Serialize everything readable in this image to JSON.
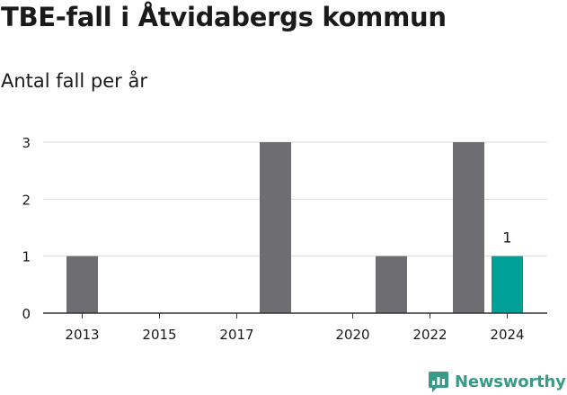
{
  "header": {
    "title": "TBE-fall i Åtvidabergs kommun",
    "subtitle": "Antal fall per år"
  },
  "brand": {
    "name": "Newsworthy",
    "color": "#3a9a85"
  },
  "colors": {
    "bar": "#6e6d72",
    "highlight": "#00a096",
    "grid": "#d9d9d9",
    "axis": "#333333"
  },
  "chart_data": {
    "type": "bar",
    "title": "TBE-fall i Åtvidabergs kommun",
    "subtitle": "Antal fall per år",
    "categories": [
      "2013",
      "2014",
      "2015",
      "2016",
      "2017",
      "2018",
      "2019",
      "2020",
      "2021",
      "2022",
      "2023",
      "2024"
    ],
    "values": [
      1,
      0,
      0,
      0,
      0,
      3,
      0,
      0,
      1,
      0,
      3,
      1
    ],
    "x_tick_labels": [
      "2013",
      "2015",
      "2017",
      "2020",
      "2022",
      "2024"
    ],
    "highlight": {
      "category": "2024",
      "label": "1"
    },
    "ylim": [
      0,
      3
    ],
    "y_ticks": [
      0,
      1,
      2,
      3
    ],
    "grid": true,
    "legend": "none"
  }
}
